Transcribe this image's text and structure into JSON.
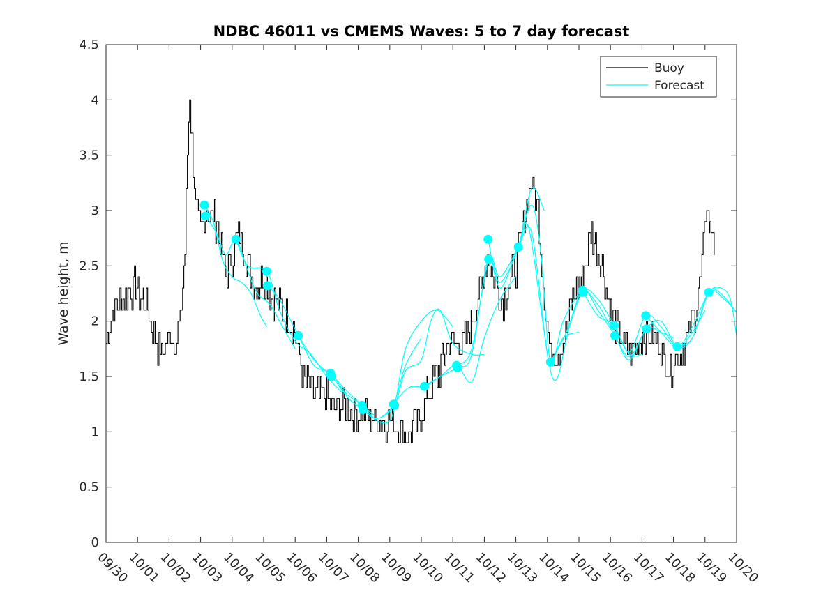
{
  "colors": {
    "buoy": "#000000",
    "forecast": "#00FFFF",
    "axes": "#262626",
    "background": "#FFFFFF"
  },
  "chart_data": {
    "type": "line",
    "title": "NDBC 46011 vs CMEMS Waves: 5 to 7 day forecast",
    "xlabel": "",
    "ylabel": "Wave height, m",
    "xlim": [
      0,
      20
    ],
    "ylim": [
      0,
      4.5
    ],
    "x_tick_values": [
      0,
      1,
      2,
      3,
      4,
      5,
      6,
      7,
      8,
      9,
      10,
      11,
      12,
      13,
      14,
      15,
      16,
      17,
      18,
      19,
      20
    ],
    "x_tick_labels": [
      "09/30",
      "10/01",
      "10/02",
      "10/03",
      "10/04",
      "10/05",
      "10/06",
      "10/07",
      "10/08",
      "10/09",
      "10/10",
      "10/11",
      "10/12",
      "10/13",
      "10/14",
      "10/15",
      "10/16",
      "10/17",
      "10/18",
      "10/19",
      "10/20"
    ],
    "y_tick_values": [
      0,
      0.5,
      1,
      1.5,
      2,
      2.5,
      3,
      3.5,
      4,
      4.5
    ],
    "y_tick_labels": [
      "0",
      "0.5",
      "1",
      "1.5",
      "2",
      "2.5",
      "3",
      "3.5",
      "4",
      "4.5"
    ],
    "x_units": "days since 09/30",
    "grid": false,
    "legend": {
      "position": "top-right",
      "entries": [
        "Buoy",
        "Forecast"
      ]
    },
    "buoy_keypoints": [
      [
        0.0,
        1.8
      ],
      [
        0.2,
        2.1
      ],
      [
        0.5,
        2.2
      ],
      [
        0.9,
        2.3
      ],
      [
        1.2,
        2.2
      ],
      [
        1.4,
        2.0
      ],
      [
        1.6,
        1.8
      ],
      [
        1.8,
        1.7
      ],
      [
        2.0,
        1.9
      ],
      [
        2.2,
        1.8
      ],
      [
        2.35,
        2.0
      ],
      [
        2.5,
        2.6
      ],
      [
        2.58,
        3.5
      ],
      [
        2.65,
        4.1
      ],
      [
        2.72,
        3.6
      ],
      [
        2.85,
        3.0
      ],
      [
        3.0,
        2.8
      ],
      [
        3.2,
        3.0
      ],
      [
        3.5,
        2.9
      ],
      [
        3.8,
        2.4
      ],
      [
        4.0,
        2.6
      ],
      [
        4.2,
        2.8
      ],
      [
        4.5,
        2.5
      ],
      [
        4.8,
        2.3
      ],
      [
        5.0,
        2.4
      ],
      [
        5.3,
        2.2
      ],
      [
        5.6,
        2.1
      ],
      [
        5.9,
        2.0
      ],
      [
        6.1,
        1.7
      ],
      [
        6.3,
        1.45
      ],
      [
        6.6,
        1.35
      ],
      [
        7.0,
        1.3
      ],
      [
        7.4,
        1.2
      ],
      [
        7.8,
        1.2
      ],
      [
        8.2,
        1.15
      ],
      [
        8.6,
        1.1
      ],
      [
        9.0,
        1.1
      ],
      [
        9.3,
        1.05
      ],
      [
        9.6,
        0.95
      ],
      [
        9.9,
        1.1
      ],
      [
        10.2,
        1.35
      ],
      [
        10.5,
        1.5
      ],
      [
        10.8,
        1.75
      ],
      [
        11.0,
        1.85
      ],
      [
        11.3,
        1.75
      ],
      [
        11.6,
        2.0
      ],
      [
        11.9,
        2.3
      ],
      [
        12.1,
        2.6
      ],
      [
        12.3,
        2.35
      ],
      [
        12.6,
        2.2
      ],
      [
        13.0,
        2.5
      ],
      [
        13.3,
        3.0
      ],
      [
        13.5,
        3.25
      ],
      [
        13.7,
        3.0
      ],
      [
        13.9,
        2.2
      ],
      [
        14.1,
        1.7
      ],
      [
        14.5,
        1.8
      ],
      [
        14.8,
        2.2
      ],
      [
        15.1,
        2.4
      ],
      [
        15.4,
        2.8
      ],
      [
        15.7,
        2.55
      ],
      [
        16.0,
        2.1
      ],
      [
        16.3,
        1.85
      ],
      [
        16.6,
        1.7
      ],
      [
        16.9,
        1.8
      ],
      [
        17.1,
        1.9
      ],
      [
        17.4,
        1.85
      ],
      [
        17.7,
        1.7
      ],
      [
        17.9,
        1.55
      ],
      [
        18.1,
        1.7
      ],
      [
        18.4,
        1.8
      ],
      [
        18.7,
        2.1
      ],
      [
        18.9,
        2.5
      ],
      [
        19.05,
        3.1
      ],
      [
        19.15,
        2.8
      ],
      [
        19.25,
        2.9
      ],
      [
        19.3,
        2.6
      ]
    ],
    "forecast_markers": [
      [
        3.12,
        3.05
      ],
      [
        3.15,
        2.95
      ],
      [
        4.12,
        2.74
      ],
      [
        5.1,
        2.45
      ],
      [
        5.12,
        2.32
      ],
      [
        6.1,
        1.87
      ],
      [
        7.12,
        1.53
      ],
      [
        7.15,
        1.5
      ],
      [
        8.12,
        1.24
      ],
      [
        8.15,
        1.2
      ],
      [
        9.12,
        1.25
      ],
      [
        9.15,
        1.24
      ],
      [
        10.1,
        1.41
      ],
      [
        11.12,
        1.6
      ],
      [
        11.15,
        1.58
      ],
      [
        12.12,
        2.74
      ],
      [
        12.14,
        2.56
      ],
      [
        13.08,
        2.67
      ],
      [
        14.1,
        1.63
      ],
      [
        15.12,
        2.28
      ],
      [
        15.14,
        2.26
      ],
      [
        16.12,
        1.96
      ],
      [
        16.14,
        1.87
      ],
      [
        17.12,
        2.05
      ],
      [
        17.14,
        1.93
      ],
      [
        18.12,
        1.77
      ],
      [
        19.12,
        2.26
      ]
    ],
    "forecast_series": [
      {
        "name": "forecast-03",
        "values": [
          [
            3.12,
            3.05
          ],
          [
            3.4,
            2.9
          ],
          [
            3.7,
            2.55
          ],
          [
            4.0,
            2.4
          ],
          [
            4.3,
            2.35
          ],
          [
            4.6,
            2.25
          ],
          [
            4.9,
            2.05
          ],
          [
            5.1,
            1.95
          ]
        ]
      },
      {
        "name": "forecast-04",
        "values": [
          [
            3.15,
            2.95
          ],
          [
            3.5,
            2.8
          ],
          [
            3.8,
            2.6
          ],
          [
            4.12,
            2.74
          ],
          [
            4.5,
            2.45
          ],
          [
            4.8,
            2.25
          ],
          [
            5.2,
            2.15
          ],
          [
            5.6,
            1.95
          ],
          [
            6.0,
            1.75
          ]
        ]
      },
      {
        "name": "forecast-05",
        "values": [
          [
            4.12,
            2.74
          ],
          [
            4.5,
            2.5
          ],
          [
            5.1,
            2.45
          ],
          [
            5.5,
            2.1
          ],
          [
            6.0,
            1.82
          ],
          [
            6.5,
            1.7
          ],
          [
            7.0,
            1.5
          ],
          [
            7.5,
            1.35
          ]
        ]
      },
      {
        "name": "forecast-06",
        "values": [
          [
            5.12,
            2.32
          ],
          [
            5.5,
            2.2
          ],
          [
            6.1,
            1.87
          ],
          [
            6.6,
            1.6
          ],
          [
            7.12,
            1.53
          ],
          [
            7.6,
            1.35
          ],
          [
            8.12,
            1.24
          ],
          [
            8.5,
            1.15
          ]
        ]
      },
      {
        "name": "forecast-07",
        "values": [
          [
            6.1,
            1.87
          ],
          [
            6.6,
            1.65
          ],
          [
            7.15,
            1.5
          ],
          [
            7.7,
            1.3
          ],
          [
            8.15,
            1.2
          ],
          [
            8.6,
            1.12
          ],
          [
            9.12,
            1.25
          ],
          [
            9.5,
            1.6
          ],
          [
            10.0,
            1.85
          ]
        ]
      },
      {
        "name": "forecast-08",
        "values": [
          [
            7.12,
            1.53
          ],
          [
            7.6,
            1.38
          ],
          [
            8.12,
            1.24
          ],
          [
            8.6,
            1.1
          ],
          [
            9.0,
            1.1
          ],
          [
            9.2,
            1.3
          ],
          [
            9.5,
            1.75
          ],
          [
            10.0,
            2.0
          ],
          [
            10.5,
            2.1
          ],
          [
            11.0,
            1.95
          ]
        ]
      },
      {
        "name": "forecast-09",
        "values": [
          [
            8.15,
            1.2
          ],
          [
            8.6,
            1.12
          ],
          [
            9.15,
            1.24
          ],
          [
            9.5,
            1.55
          ],
          [
            10.0,
            1.65
          ],
          [
            10.3,
            2.0
          ],
          [
            10.6,
            2.1
          ],
          [
            11.0,
            1.8
          ],
          [
            11.6,
            1.7
          ],
          [
            12.0,
            1.7
          ]
        ]
      },
      {
        "name": "forecast-10",
        "values": [
          [
            9.12,
            1.25
          ],
          [
            9.6,
            1.4
          ],
          [
            10.1,
            1.41
          ],
          [
            10.6,
            1.5
          ],
          [
            11.12,
            1.6
          ],
          [
            11.6,
            1.45
          ],
          [
            12.0,
            1.85
          ],
          [
            12.5,
            2.2
          ],
          [
            13.0,
            2.4
          ]
        ]
      },
      {
        "name": "forecast-11",
        "values": [
          [
            10.1,
            1.41
          ],
          [
            10.6,
            1.5
          ],
          [
            11.15,
            1.58
          ],
          [
            11.6,
            1.7
          ],
          [
            12.12,
            2.56
          ],
          [
            12.5,
            2.35
          ],
          [
            13.08,
            2.67
          ],
          [
            13.5,
            3.2
          ],
          [
            13.9,
            3.0
          ]
        ]
      },
      {
        "name": "forecast-12",
        "values": [
          [
            11.12,
            1.6
          ],
          [
            11.6,
            1.75
          ],
          [
            12.14,
            2.56
          ],
          [
            12.5,
            2.4
          ],
          [
            13.08,
            2.67
          ],
          [
            13.4,
            2.85
          ],
          [
            13.9,
            1.9
          ],
          [
            14.1,
            1.63
          ],
          [
            14.5,
            1.85
          ],
          [
            15.0,
            1.9
          ]
        ]
      },
      {
        "name": "forecast-13",
        "values": [
          [
            12.12,
            2.74
          ],
          [
            12.5,
            2.3
          ],
          [
            13.08,
            2.67
          ],
          [
            13.5,
            2.8
          ],
          [
            14.0,
            1.7
          ],
          [
            14.3,
            1.48
          ],
          [
            14.7,
            1.95
          ],
          [
            15.14,
            2.26
          ],
          [
            15.6,
            2.15
          ],
          [
            16.0,
            1.95
          ]
        ]
      },
      {
        "name": "forecast-14",
        "values": [
          [
            13.08,
            2.67
          ],
          [
            13.5,
            3.05
          ],
          [
            13.8,
            2.6
          ],
          [
            14.1,
            1.63
          ],
          [
            14.5,
            2.0
          ],
          [
            15.12,
            2.28
          ],
          [
            15.6,
            2.2
          ],
          [
            16.12,
            1.96
          ],
          [
            16.6,
            1.7
          ],
          [
            17.0,
            1.7
          ]
        ]
      },
      {
        "name": "forecast-15",
        "values": [
          [
            14.1,
            1.63
          ],
          [
            14.6,
            1.9
          ],
          [
            15.12,
            2.28
          ],
          [
            15.6,
            2.1
          ],
          [
            16.14,
            1.87
          ],
          [
            16.6,
            1.65
          ],
          [
            17.14,
            1.93
          ],
          [
            17.6,
            1.9
          ],
          [
            18.0,
            1.85
          ]
        ]
      },
      {
        "name": "forecast-16",
        "values": [
          [
            15.14,
            2.26
          ],
          [
            15.6,
            2.05
          ],
          [
            16.12,
            1.96
          ],
          [
            16.6,
            1.72
          ],
          [
            17.12,
            2.05
          ],
          [
            17.6,
            1.95
          ],
          [
            18.12,
            1.77
          ],
          [
            18.6,
            1.9
          ],
          [
            19.0,
            2.1
          ]
        ]
      },
      {
        "name": "forecast-17",
        "values": [
          [
            16.14,
            1.87
          ],
          [
            16.6,
            1.68
          ],
          [
            17.14,
            1.93
          ],
          [
            17.6,
            2.0
          ],
          [
            18.12,
            1.77
          ],
          [
            18.6,
            1.85
          ],
          [
            19.12,
            2.26
          ],
          [
            19.6,
            2.2
          ],
          [
            20.0,
            2.08
          ]
        ]
      },
      {
        "name": "forecast-18",
        "values": [
          [
            17.12,
            2.05
          ],
          [
            17.6,
            1.9
          ],
          [
            18.12,
            1.77
          ],
          [
            18.6,
            1.95
          ],
          [
            19.12,
            2.26
          ],
          [
            19.5,
            2.3
          ],
          [
            19.8,
            2.2
          ],
          [
            20.0,
            1.87
          ]
        ]
      },
      {
        "name": "forecast-19",
        "values": [
          [
            18.12,
            1.77
          ],
          [
            18.6,
            1.85
          ],
          [
            19.12,
            2.26
          ],
          [
            19.5,
            2.25
          ],
          [
            20.0,
            2.08
          ]
        ]
      }
    ]
  }
}
